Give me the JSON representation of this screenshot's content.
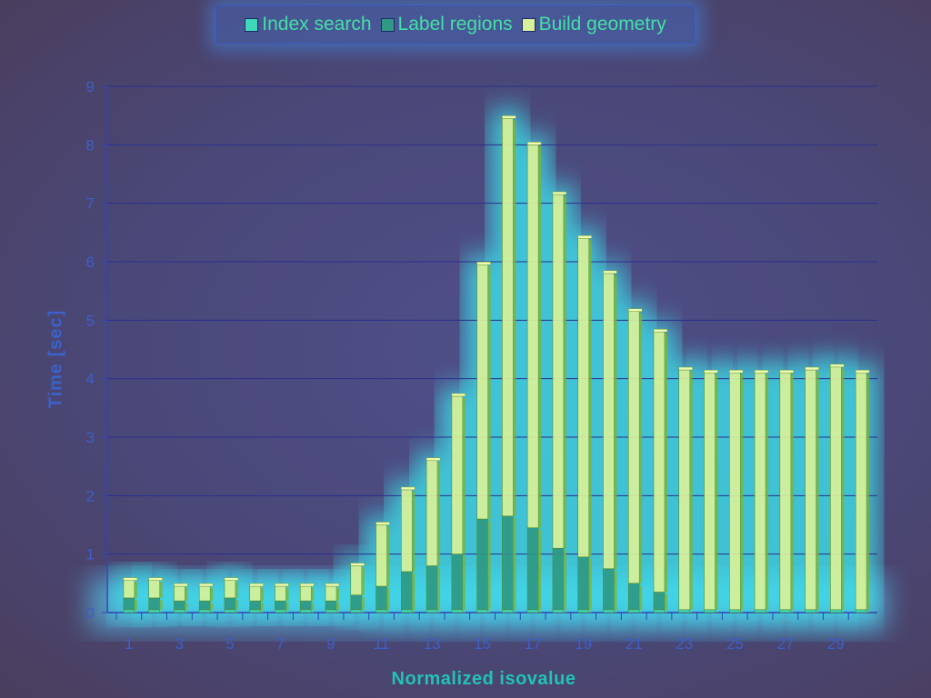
{
  "chart_data": {
    "type": "bar",
    "stacked": true,
    "xlabel": "Normalized isovalue",
    "ylabel": "Time [sec]",
    "ylim": [
      0,
      9
    ],
    "yticks": [
      0,
      1,
      2,
      3,
      4,
      5,
      6,
      7,
      8,
      9
    ],
    "xtick_labels": [
      "1",
      "3",
      "5",
      "7",
      "9",
      "11",
      "13",
      "15",
      "17",
      "19",
      "21",
      "23",
      "25",
      "27",
      "29"
    ],
    "grid": true,
    "legend": "top-center",
    "categories": [
      "1",
      "2",
      "3",
      "4",
      "5",
      "6",
      "7",
      "8",
      "9",
      "10",
      "11",
      "12",
      "13",
      "14",
      "15",
      "16",
      "17",
      "18",
      "19",
      "20",
      "21",
      "22",
      "23",
      "24",
      "25",
      "26",
      "27",
      "28",
      "29",
      "30"
    ],
    "series": [
      {
        "name": "Index search",
        "color": "#3fd8b8",
        "values": [
          0.05,
          0.05,
          0.05,
          0.05,
          0.05,
          0.05,
          0.05,
          0.05,
          0.05,
          0.05,
          0.05,
          0.05,
          0.05,
          0.05,
          0.05,
          0.05,
          0.05,
          0.05,
          0.05,
          0.05,
          0.05,
          0.05,
          0.05,
          0.05,
          0.05,
          0.05,
          0.05,
          0.05,
          0.05,
          0.05
        ]
      },
      {
        "name": "Label regions",
        "color": "#2e9a86",
        "values": [
          0.2,
          0.2,
          0.15,
          0.15,
          0.2,
          0.15,
          0.15,
          0.15,
          0.15,
          0.25,
          0.4,
          0.65,
          0.75,
          0.95,
          1.55,
          1.6,
          1.4,
          1.05,
          0.9,
          0.7,
          0.45,
          0.3,
          0,
          0,
          0,
          0,
          0,
          0,
          0,
          0
        ]
      },
      {
        "name": "Build geometry",
        "color": "#d8f29a",
        "values": [
          0.3,
          0.3,
          0.25,
          0.25,
          0.3,
          0.25,
          0.25,
          0.25,
          0.25,
          0.5,
          1.05,
          1.4,
          1.8,
          2.7,
          4.35,
          6.8,
          6.55,
          6.05,
          5.45,
          5.05,
          4.65,
          4.45,
          4.1,
          4.05,
          4.05,
          4.05,
          4.05,
          4.1,
          4.15,
          4.05
        ]
      }
    ]
  }
}
